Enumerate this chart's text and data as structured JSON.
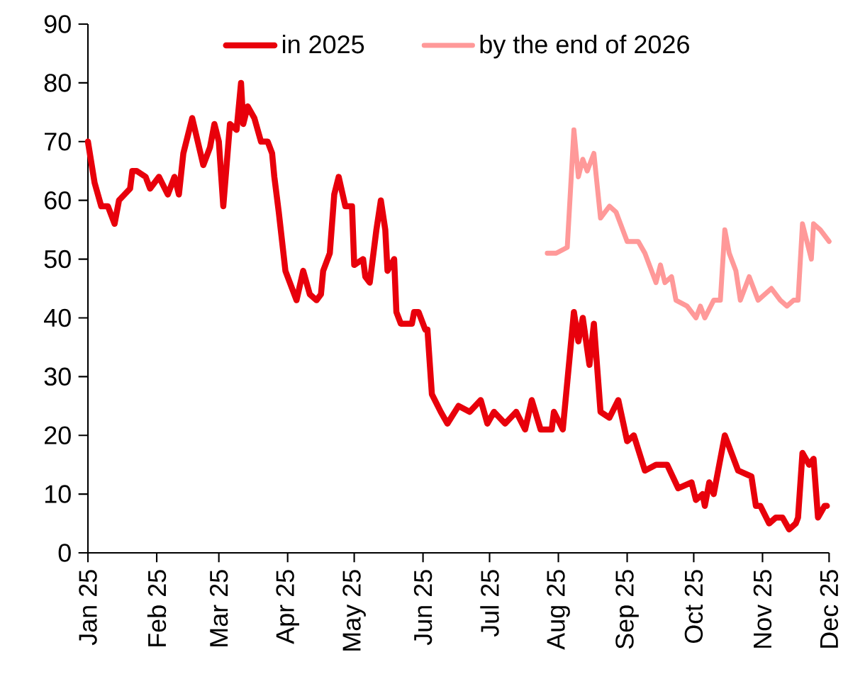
{
  "chart_data": {
    "type": "line",
    "xlim": [
      "2025-01-01",
      "2025-12-01"
    ],
    "xticks": [
      {
        "value": "2025-01-01",
        "label": "Jan 25"
      },
      {
        "value": "2025-02-01",
        "label": "Feb 25"
      },
      {
        "value": "2025-03-01",
        "label": "Mar 25"
      },
      {
        "value": "2025-04-01",
        "label": "Apr 25"
      },
      {
        "value": "2025-05-01",
        "label": "May 25"
      },
      {
        "value": "2025-06-01",
        "label": "Jun 25"
      },
      {
        "value": "2025-07-01",
        "label": "Jul 25"
      },
      {
        "value": "2025-08-01",
        "label": "Aug 25"
      },
      {
        "value": "2025-09-01",
        "label": "Sep 25"
      },
      {
        "value": "2025-10-01",
        "label": "Oct 25"
      },
      {
        "value": "2025-11-01",
        "label": "Nov 25"
      },
      {
        "value": "2025-12-01",
        "label": "Dec 25"
      }
    ],
    "ylim": [
      0,
      90
    ],
    "yticks": [
      0,
      10,
      20,
      30,
      40,
      50,
      60,
      70,
      80,
      90
    ],
    "legend": "top",
    "series": [
      {
        "name": "in 2025",
        "color": "#e8000b",
        "x": [
          "2025-01-01",
          "2025-01-04",
          "2025-01-07",
          "2025-01-10",
          "2025-01-13",
          "2025-01-15",
          "2025-01-20",
          "2025-01-21",
          "2025-01-23",
          "2025-01-27",
          "2025-01-29",
          "2025-02-02",
          "2025-02-06",
          "2025-02-09",
          "2025-02-11",
          "2025-02-13",
          "2025-02-17",
          "2025-02-22",
          "2025-02-25",
          "2025-02-27",
          "2025-03-01",
          "2025-03-03",
          "2025-03-06",
          "2025-03-09",
          "2025-03-11",
          "2025-03-12",
          "2025-03-14",
          "2025-03-17",
          "2025-03-20",
          "2025-03-23",
          "2025-03-25",
          "2025-03-26",
          "2025-03-28",
          "2025-03-31",
          "2025-04-05",
          "2025-04-08",
          "2025-04-11",
          "2025-04-14",
          "2025-04-16",
          "2025-04-17",
          "2025-04-20",
          "2025-04-22",
          "2025-04-24",
          "2025-04-27",
          "2025-04-30",
          "2025-05-01",
          "2025-05-05",
          "2025-05-06",
          "2025-05-08",
          "2025-05-11",
          "2025-05-13",
          "2025-05-15",
          "2025-05-16",
          "2025-05-19",
          "2025-05-20",
          "2025-05-22",
          "2025-05-27",
          "2025-05-28",
          "2025-05-30",
          "2025-06-02",
          "2025-06-03",
          "2025-06-05",
          "2025-06-09",
          "2025-06-12",
          "2025-06-17",
          "2025-06-22",
          "2025-06-27",
          "2025-06-30",
          "2025-07-03",
          "2025-07-08",
          "2025-07-13",
          "2025-07-17",
          "2025-07-20",
          "2025-07-24",
          "2025-07-29",
          "2025-07-30",
          "2025-08-03",
          "2025-08-08",
          "2025-08-10",
          "2025-08-12",
          "2025-08-15",
          "2025-08-17",
          "2025-08-20",
          "2025-08-24",
          "2025-08-28",
          "2025-09-01",
          "2025-09-04",
          "2025-09-09",
          "2025-09-14",
          "2025-09-19",
          "2025-09-24",
          "2025-09-30",
          "2025-10-02",
          "2025-10-05",
          "2025-10-06",
          "2025-10-08",
          "2025-10-10",
          "2025-10-15",
          "2025-10-17",
          "2025-10-21",
          "2025-10-27",
          "2025-10-29",
          "2025-10-31",
          "2025-11-04",
          "2025-11-07",
          "2025-11-10",
          "2025-11-13",
          "2025-11-16",
          "2025-11-17",
          "2025-11-19",
          "2025-11-22",
          "2025-11-24",
          "2025-11-26",
          "2025-11-29",
          "2025-11-30"
        ],
        "values": [
          70,
          63,
          59,
          59,
          56,
          60,
          62,
          65,
          65,
          64,
          62,
          64,
          61,
          64,
          61,
          68,
          74,
          66,
          69,
          73,
          70,
          59,
          73,
          72,
          80,
          73,
          76,
          74,
          70,
          70,
          68,
          64,
          58,
          48,
          43,
          48,
          44,
          43,
          44,
          48,
          51,
          61,
          64,
          59,
          59,
          49,
          50,
          47,
          46,
          55,
          60,
          55,
          48,
          50,
          41,
          39,
          39,
          41,
          41,
          38,
          38,
          27,
          24,
          22,
          25,
          24,
          26,
          22,
          24,
          22,
          24,
          21,
          26,
          21,
          21,
          24,
          21,
          41,
          36,
          40,
          32,
          39,
          24,
          23,
          26,
          19,
          20,
          14,
          15,
          15,
          11,
          12,
          9,
          10,
          8,
          12,
          10,
          20,
          18,
          14,
          13,
          8,
          8,
          5,
          6,
          6,
          4,
          5,
          6,
          17,
          15,
          16,
          6,
          8,
          8
        ]
      },
      {
        "name": "by the end of 2026",
        "color": "#ff9999",
        "x": [
          "2025-07-27",
          "2025-07-31",
          "2025-08-05",
          "2025-08-08",
          "2025-08-10",
          "2025-08-12",
          "2025-08-14",
          "2025-08-17",
          "2025-08-20",
          "2025-08-24",
          "2025-08-27",
          "2025-09-01",
          "2025-09-06",
          "2025-09-09",
          "2025-09-14",
          "2025-09-16",
          "2025-09-18",
          "2025-09-21",
          "2025-09-23",
          "2025-09-28",
          "2025-10-02",
          "2025-10-04",
          "2025-10-06",
          "2025-10-10",
          "2025-10-13",
          "2025-10-15",
          "2025-10-17",
          "2025-10-20",
          "2025-10-22",
          "2025-10-26",
          "2025-10-30",
          "2025-11-05",
          "2025-11-09",
          "2025-11-12",
          "2025-11-15",
          "2025-11-17",
          "2025-11-19",
          "2025-11-23",
          "2025-11-24",
          "2025-11-27",
          "2025-12-01"
        ],
        "values": [
          51,
          51,
          52,
          72,
          64,
          67,
          65,
          68,
          57,
          59,
          58,
          53,
          53,
          51,
          46,
          49,
          46,
          47,
          43,
          42,
          40,
          42,
          40,
          43,
          43,
          55,
          51,
          48,
          43,
          47,
          43,
          45,
          43,
          42,
          43,
          43,
          56,
          50,
          56,
          55,
          53
        ]
      }
    ]
  }
}
